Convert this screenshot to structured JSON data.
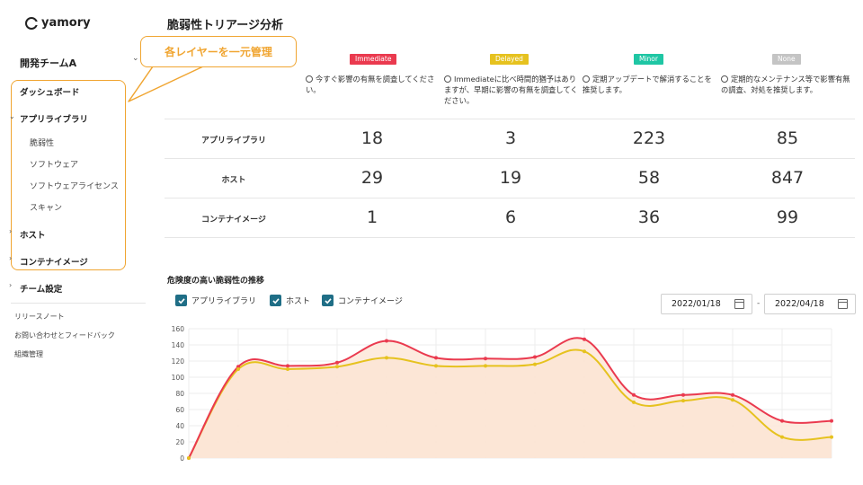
{
  "app": {
    "logo_text": "yamory"
  },
  "sidebar": {
    "team": "開発チームA",
    "items": {
      "dashboard": "ダッシュボード",
      "app_library": "アプリライブラリ",
      "vulnerability": "脆弱性",
      "software": "ソフトウェア",
      "software_license": "ソフトウェアライセンス",
      "scan": "スキャン",
      "host": "ホスト",
      "container_image": "コンテナイメージ",
      "team_settings": "チーム設定"
    },
    "footer": {
      "release_notes": "リリースノート",
      "feedback": "お問い合わせとフィードバック",
      "org_admin": "組織管理"
    }
  },
  "callout": {
    "text": "各レイヤーを一元管理"
  },
  "page": {
    "title": "脆弱性トリアージ分析"
  },
  "colors": {
    "immediate": "#ea3a4f",
    "delayed": "#e6c21f",
    "minor": "#1fc6a4",
    "none": "#c4c4c4",
    "accent": "#f0a531",
    "checkbox": "#1f6e86"
  },
  "triage": {
    "columns": [
      {
        "label": "Immediate",
        "desc": "今すぐ影響の有無を調査してください。"
      },
      {
        "label": "Delayed",
        "desc": "Immediateに比べ時間的猶予はありますが、早期に影響の有無を調査してください。"
      },
      {
        "label": "Minor",
        "desc": "定期アップデートで解消することを推奨します。"
      },
      {
        "label": "None",
        "desc": "定期的なメンテナンス等で影響有無の調査、対処を推奨します。"
      }
    ],
    "rows": [
      {
        "label": "アプリライブラリ",
        "values": [
          "18",
          "3",
          "223",
          "85"
        ]
      },
      {
        "label": "ホスト",
        "values": [
          "29",
          "19",
          "58",
          "847"
        ]
      },
      {
        "label": "コンテナイメージ",
        "values": [
          "1",
          "6",
          "36",
          "99"
        ]
      }
    ]
  },
  "trend": {
    "title": "危険度の高い脆弱性の推移",
    "legend": {
      "app_library": "アプリライブラリ",
      "host": "ホスト",
      "container_image": "コンテナイメージ"
    },
    "date_from": "2022/01/18",
    "date_to": "2022/04/18",
    "date_separator": "-"
  },
  "chart_data": {
    "type": "area",
    "y_ticks": [
      "0",
      "20",
      "40",
      "60",
      "80",
      "100",
      "120",
      "140",
      "160"
    ],
    "ylim": [
      0,
      160
    ],
    "x_count": 14,
    "grid": true,
    "series": [
      {
        "values": [
          0,
          113,
          114,
          118,
          145,
          124,
          123,
          125,
          147,
          78,
          78,
          78,
          46,
          46
        ]
      },
      {
        "values": [
          0,
          110,
          110,
          113,
          124,
          114,
          114,
          116,
          132,
          69,
          71,
          72,
          26,
          26
        ]
      }
    ]
  }
}
